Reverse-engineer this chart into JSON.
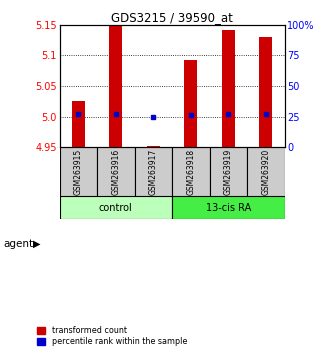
{
  "title": "GDS3215 / 39590_at",
  "samples": [
    "GSM263915",
    "GSM263916",
    "GSM263917",
    "GSM263918",
    "GSM263919",
    "GSM263920"
  ],
  "transformed_counts": [
    5.025,
    5.148,
    4.952,
    5.093,
    5.142,
    5.13
  ],
  "bar_bottom": 4.95,
  "percentile_ranks": [
    27,
    27,
    25,
    26,
    27,
    27
  ],
  "left_yticks": [
    4.95,
    5.0,
    5.05,
    5.1,
    5.15
  ],
  "left_ylim": [
    4.95,
    5.15
  ],
  "right_yticks": [
    0,
    25,
    50,
    75,
    100
  ],
  "right_ylim": [
    0,
    100
  ],
  "right_yticklabels": [
    "0",
    "25",
    "50",
    "75",
    "100%"
  ],
  "bar_color": "#cc0000",
  "percentile_color": "#0000cc",
  "sample_box_color": "#cccccc",
  "control_color": "#bbffbb",
  "ra_color": "#44ee44",
  "group_spans": [
    [
      0,
      2,
      "control"
    ],
    [
      3,
      5,
      "13-cis RA"
    ]
  ],
  "group_colors": [
    "#bbffbb",
    "#44ee44"
  ]
}
